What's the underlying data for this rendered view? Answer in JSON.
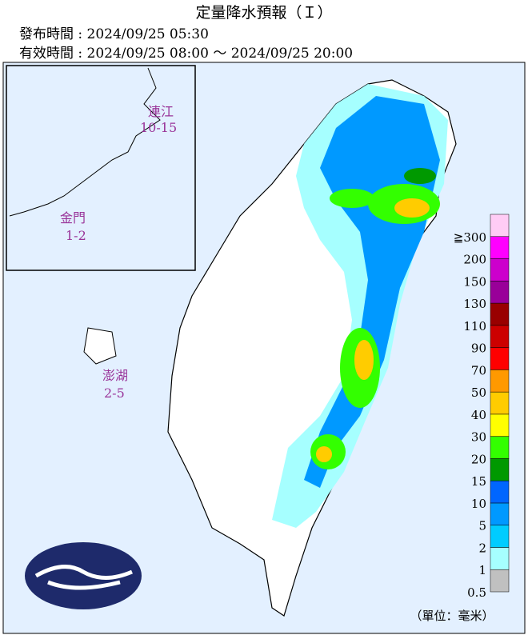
{
  "header": {
    "title": "定量降水預報（Ｉ）",
    "issued": "發布時間 : 2024/09/25 05:30",
    "valid": "有效時間 : 2024/09/25 08:00 ～ 2024/09/25 20:00"
  },
  "islands": [
    {
      "name": "連江",
      "range": "10-15"
    },
    {
      "name": "金門",
      "range": "1-2"
    },
    {
      "name": "澎湖",
      "range": "2-5"
    }
  ],
  "legend": {
    "unit": "（單位：毫米）",
    "levels": [
      {
        "label": "0.5",
        "color": "#c0c0c0"
      },
      {
        "label": "1",
        "color": "#a6ffff"
      },
      {
        "label": "2",
        "color": "#00ccff"
      },
      {
        "label": "5",
        "color": "#0099ff"
      },
      {
        "label": "10",
        "color": "#0066ff"
      },
      {
        "label": "15",
        "color": "#009900"
      },
      {
        "label": "20",
        "color": "#33ff00"
      },
      {
        "label": "30",
        "color": "#ffff00"
      },
      {
        "label": "40",
        "color": "#ffcc00"
      },
      {
        "label": "50",
        "color": "#ff9900"
      },
      {
        "label": "70",
        "color": "#ff0000"
      },
      {
        "label": "90",
        "color": "#cc0000"
      },
      {
        "label": "110",
        "color": "#990000"
      },
      {
        "label": "130",
        "color": "#990099"
      },
      {
        "label": "150",
        "color": "#cc00cc"
      },
      {
        "label": "200",
        "color": "#ff00ff"
      },
      {
        "label": "≧300",
        "color": "#ffccf5"
      }
    ]
  }
}
